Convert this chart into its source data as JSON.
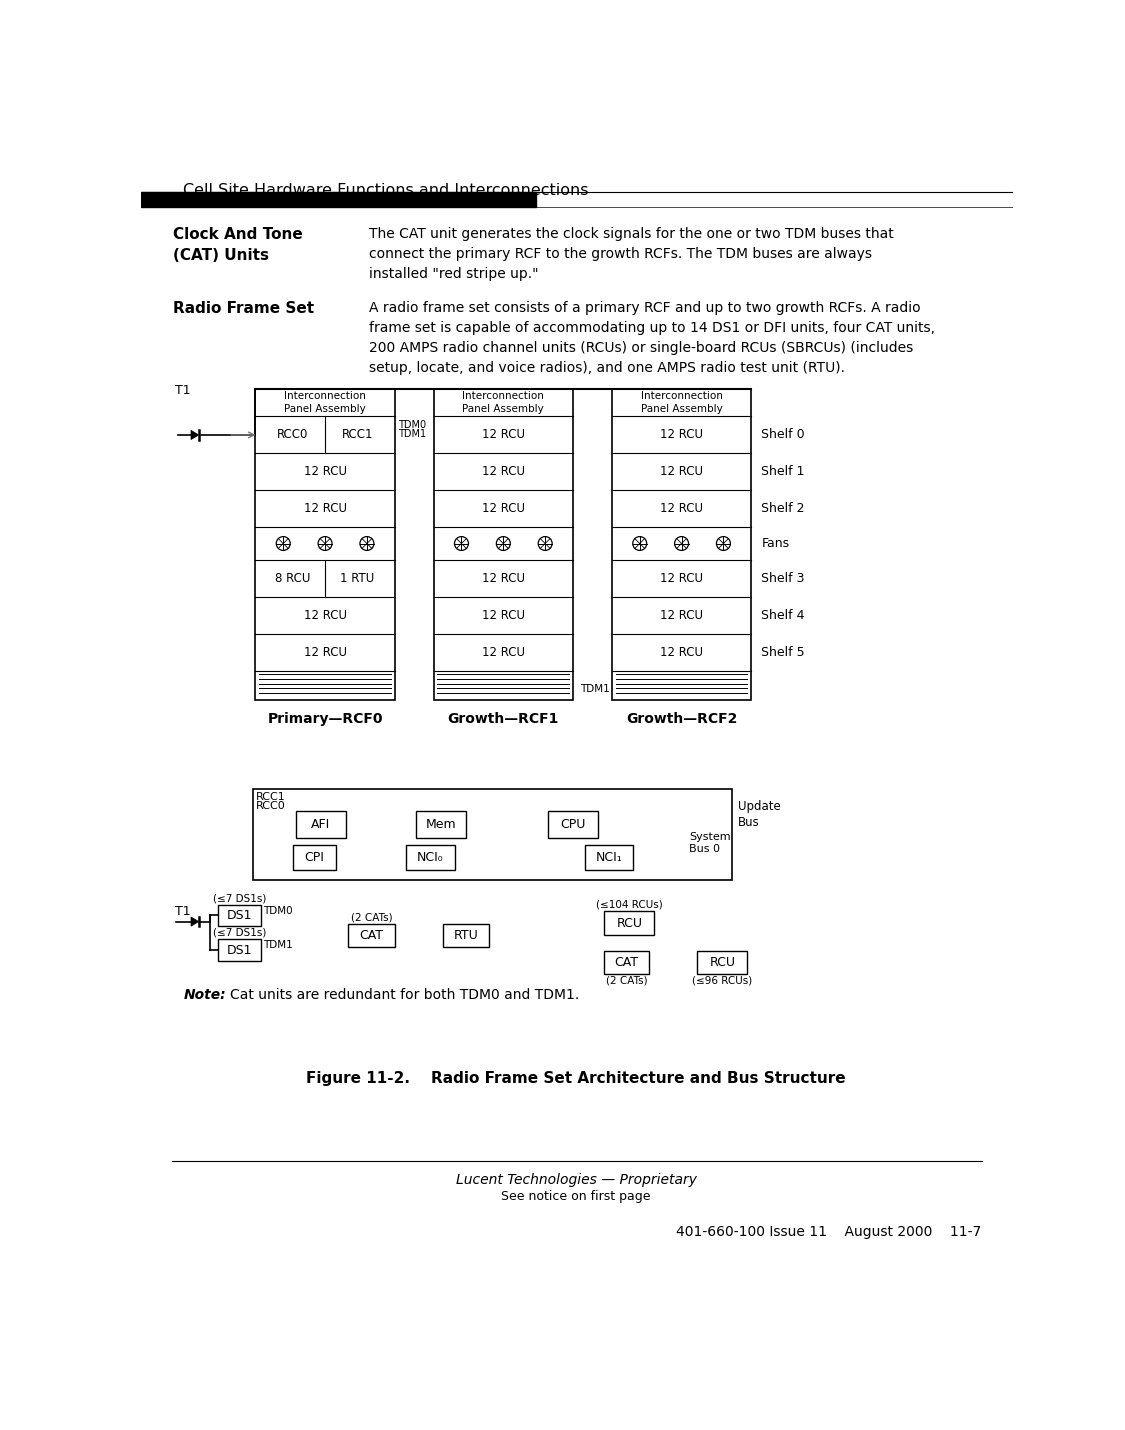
{
  "page_title": "Cell Site Hardware Functions and Interconnections",
  "bg_color": "#ffffff",
  "text_color": "#000000",
  "section1_bold": "Clock And Tone\n(CAT) Units",
  "section1_text": "The CAT unit generates the clock signals for the one or two TDM buses that\nconnect the primary RCF to the growth RCFs. The TDM buses are always\ninstalled \"red stripe up.\"",
  "section2_bold": "Radio Frame Set",
  "section2_text": "A radio frame set consists of a primary RCF and up to two growth RCFs. A radio\nframe set is capable of accommodating up to 14 DS1 or DFI units, four CAT units,\n200 AMPS radio channel units (RCUs) or single-board RCUs (SBRCUs) (includes\nsetup, locate, and voice radios), and one AMPS radio test unit (RTU).",
  "fig_caption": "Figure 11-2.    Radio Frame Set Architecture and Bus Structure",
  "footer_line1": "Lucent Technologies — Proprietary",
  "footer_line2": "See notice on first page",
  "footer_line3": "401-660-100 Issue 11    August 2000    11-7"
}
